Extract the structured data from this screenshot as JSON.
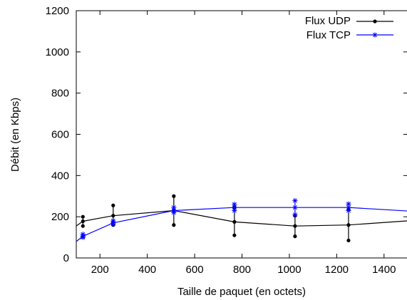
{
  "chart_data": {
    "type": "line",
    "title": "",
    "xlabel": "Taille de paquet (en octets)",
    "ylabel": "Débit (en Kbps)",
    "xlim": [
      100,
      1500
    ],
    "ylim": [
      0,
      1200
    ],
    "x_ticks": [
      200,
      400,
      600,
      800,
      1000,
      1200,
      1400
    ],
    "y_ticks": [
      0,
      200,
      400,
      600,
      800,
      1000,
      1200
    ],
    "x_tick_labels": [
      "200",
      "400",
      "600",
      "800",
      "1000",
      "1200",
      "1400"
    ],
    "y_tick_labels": [
      "0",
      "200",
      "400",
      "600",
      "800",
      "1000",
      "1200"
    ],
    "grid": false,
    "legend_position": "top-right",
    "series": [
      {
        "name": "Flux UDP",
        "color": "#000000",
        "marker": "dot",
        "line": [
          [
            100,
            155
          ],
          [
            128,
            178
          ],
          [
            256,
            205
          ],
          [
            512,
            230
          ],
          [
            768,
            175
          ],
          [
            1024,
            155
          ],
          [
            1250,
            160
          ],
          [
            1500,
            180
          ]
        ],
        "points": [
          [
            128,
            200
          ],
          [
            128,
            178
          ],
          [
            128,
            155
          ],
          [
            256,
            255
          ],
          [
            256,
            205
          ],
          [
            256,
            160
          ],
          [
            512,
            300
          ],
          [
            512,
            230
          ],
          [
            512,
            160
          ],
          [
            768,
            245
          ],
          [
            768,
            175
          ],
          [
            768,
            110
          ],
          [
            1024,
            205
          ],
          [
            1024,
            155
          ],
          [
            1024,
            105
          ],
          [
            1250,
            235
          ],
          [
            1250,
            160
          ],
          [
            1250,
            85
          ]
        ]
      },
      {
        "name": "Flux TCP",
        "color": "#0000ff",
        "marker": "star",
        "line": [
          [
            100,
            80
          ],
          [
            128,
            105
          ],
          [
            256,
            170
          ],
          [
            512,
            230
          ],
          [
            768,
            245
          ],
          [
            1024,
            245
          ],
          [
            1250,
            245
          ],
          [
            1500,
            228
          ]
        ],
        "points": [
          [
            128,
            115
          ],
          [
            128,
            105
          ],
          [
            128,
            100
          ],
          [
            256,
            180
          ],
          [
            256,
            170
          ],
          [
            256,
            165
          ],
          [
            512,
            245
          ],
          [
            512,
            230
          ],
          [
            512,
            220
          ],
          [
            768,
            260
          ],
          [
            768,
            245
          ],
          [
            768,
            230
          ],
          [
            1024,
            278
          ],
          [
            1024,
            245
          ],
          [
            1024,
            210
          ],
          [
            1250,
            262
          ],
          [
            1250,
            245
          ],
          [
            1250,
            230
          ]
        ]
      }
    ]
  }
}
